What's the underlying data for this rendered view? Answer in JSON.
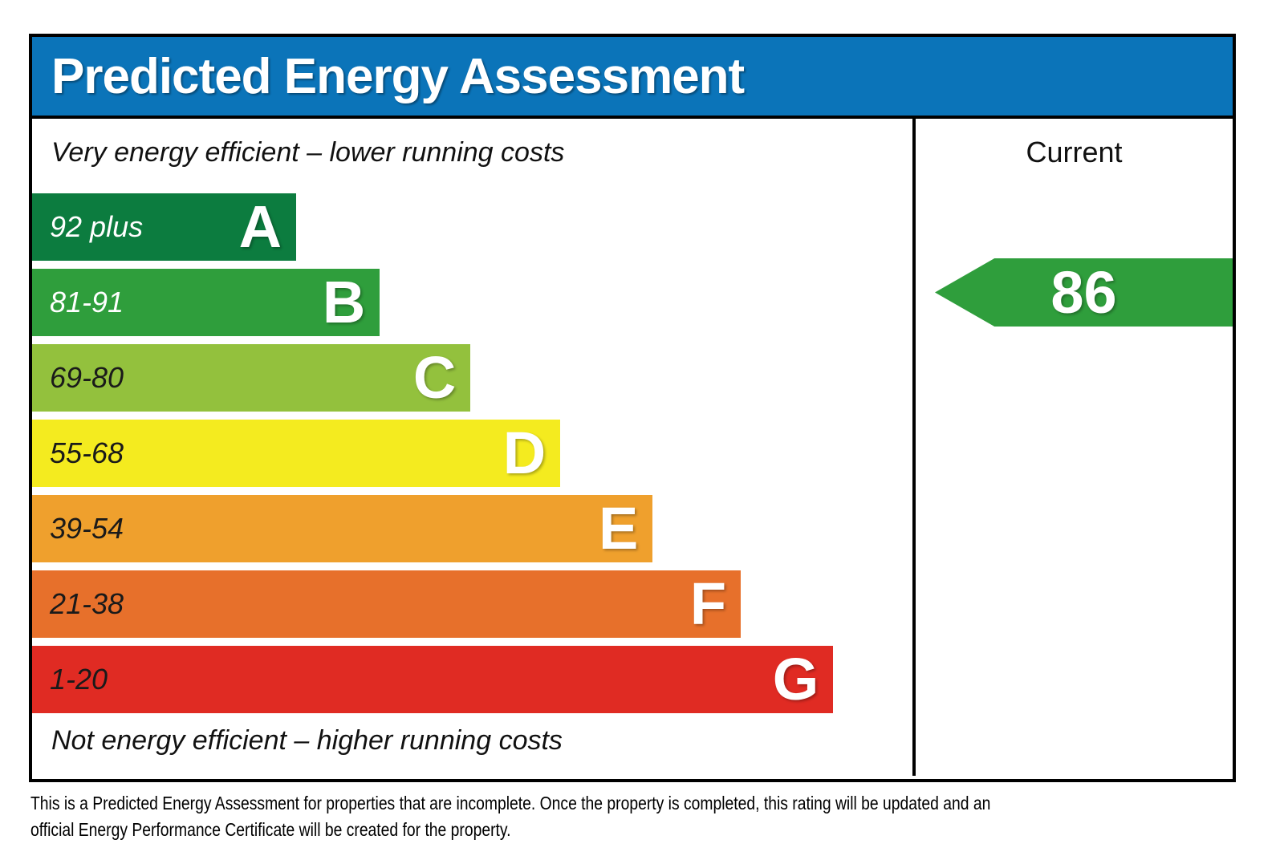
{
  "header": {
    "title": "Predicted Energy Assessment",
    "bg_color": "#0b74b9"
  },
  "captions": {
    "top": "Very energy efficient – lower running costs",
    "bottom": "Not energy efficient – higher running costs"
  },
  "current_column": {
    "label": "Current"
  },
  "chart_data": {
    "type": "bar",
    "title": "Predicted Energy Assessment",
    "bands": [
      {
        "grade": "A",
        "range": "92 plus",
        "color": "#0c7c3f",
        "label_color": "#ffffff",
        "width_pct": 30
      },
      {
        "grade": "B",
        "range": "81-91",
        "color": "#2f9e3c",
        "label_color": "#ffffff",
        "width_pct": 39.5
      },
      {
        "grade": "C",
        "range": "69-80",
        "color": "#93c13d",
        "label_color": "#1a1a1a",
        "width_pct": 49.8
      },
      {
        "grade": "D",
        "range": "55-68",
        "color": "#f4eb1f",
        "label_color": "#1a1a1a",
        "width_pct": 60
      },
      {
        "grade": "E",
        "range": "39-54",
        "color": "#efa02d",
        "label_color": "#1a1a1a",
        "width_pct": 70.5
      },
      {
        "grade": "F",
        "range": "21-38",
        "color": "#e7702b",
        "label_color": "#1a1a1a",
        "width_pct": 80.5
      },
      {
        "grade": "G",
        "range": "1-20",
        "color": "#e02b23",
        "label_color": "#1a1a1a",
        "width_pct": 91
      }
    ],
    "current": {
      "value": "86",
      "grade": "B",
      "arrow_color": "#2f9e3c"
    }
  },
  "footer": {
    "line1": "This is a Predicted Energy Assessment for properties that are incomplete. Once the property is completed, this rating will be updated and an",
    "line2": "official Energy Performance Certificate will be created for the property."
  }
}
